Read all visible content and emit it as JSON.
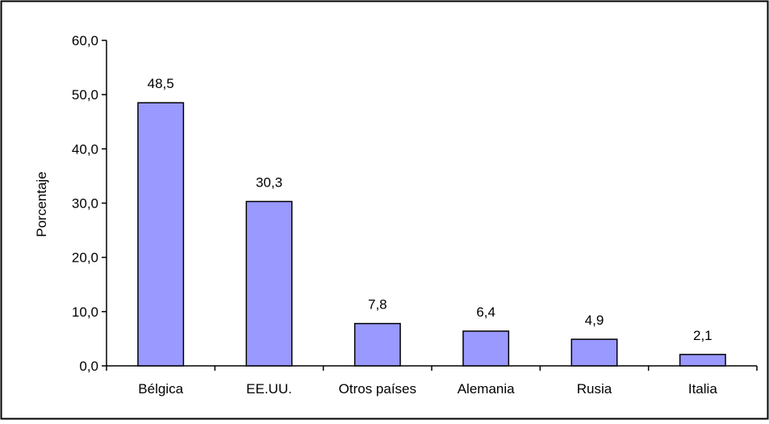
{
  "chart_data": {
    "type": "bar",
    "title": "",
    "xlabel": "",
    "ylabel": "Porcentaje",
    "categories": [
      "Bélgica",
      "EE.UU.",
      "Otros países",
      "Alemania",
      "Rusia",
      "Italia"
    ],
    "values": [
      48.5,
      30.3,
      7.8,
      6.4,
      4.9,
      2.1
    ],
    "data_labels": [
      "48,5",
      "30,3",
      "7,8",
      "6,4",
      "4,9",
      "2,1"
    ],
    "ylim": [
      0,
      60
    ],
    "yticks": [
      0,
      10,
      20,
      30,
      40,
      50,
      60
    ],
    "ytick_labels": [
      "0,0",
      "10,0",
      "20,0",
      "30,0",
      "40,0",
      "50,0",
      "60,0"
    ],
    "grid": false,
    "legend": "none",
    "colors": {
      "bar_fill": "#9999ff",
      "bar_stroke": "#000000",
      "axis": "#000000",
      "frame": "#000000",
      "background": "#ffffff"
    }
  }
}
